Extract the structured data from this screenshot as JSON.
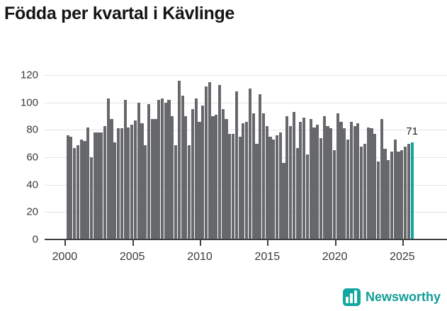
{
  "title": "Födda per kvartal i Kävlinge",
  "annotation": {
    "label": "71"
  },
  "footer": {
    "brand": "Newsworthy"
  },
  "colors": {
    "bar": "#67686c",
    "highlight": "#12a79e",
    "grid": "#e4e4e4",
    "axis": "#3f4040",
    "brand_text": "#119e96",
    "brand_icon_bg": "#12a79e"
  },
  "chart_data": {
    "type": "bar",
    "title": "Födda per kvartal i Kävlinge",
    "frequency": "quarterly",
    "x_start": "2000-Q1",
    "x_end": "2025-Q3",
    "xlabel": "",
    "ylabel": "",
    "ylim": [
      0,
      120
    ],
    "yticks": [
      0,
      20,
      40,
      60,
      80,
      100,
      120
    ],
    "xticks": [
      2000,
      2005,
      2010,
      2015,
      2020,
      2025
    ],
    "grid": "horizontal",
    "legend": "none",
    "highlight_index": 102,
    "annotation": {
      "index": 102,
      "text": "71"
    },
    "values": [
      76,
      75,
      67,
      69,
      73,
      72,
      82,
      60,
      78,
      78,
      78,
      83,
      103,
      88,
      71,
      81,
      81,
      102,
      82,
      84,
      87,
      100,
      85,
      69,
      99,
      88,
      88,
      102,
      103,
      100,
      102,
      90,
      69,
      116,
      105,
      90,
      69,
      95,
      103,
      86,
      98,
      112,
      115,
      90,
      91,
      113,
      95,
      88,
      77,
      77,
      108,
      75,
      85,
      86,
      110,
      92,
      70,
      106,
      92,
      83,
      75,
      73,
      76,
      78,
      56,
      90,
      83,
      93,
      67,
      86,
      89,
      62,
      88,
      82,
      84,
      74,
      90,
      83,
      81,
      65,
      92,
      86,
      81,
      73,
      86,
      83,
      85,
      68,
      70,
      82,
      81,
      77,
      57,
      88,
      66,
      58,
      64,
      73,
      64,
      65,
      68,
      70,
      71
    ]
  }
}
